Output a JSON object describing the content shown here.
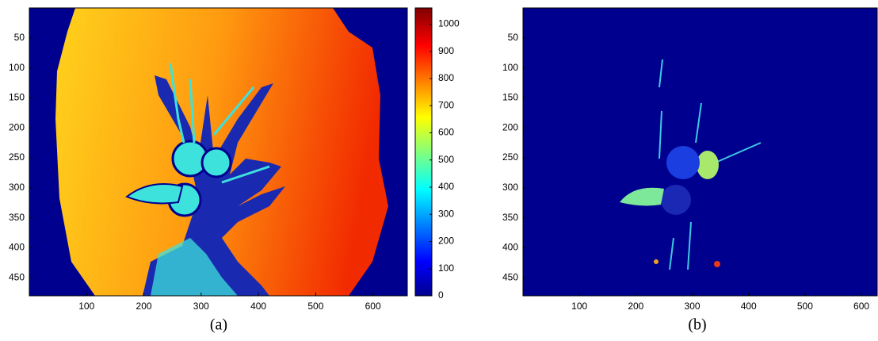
{
  "chart_data": [
    {
      "type": "heatmap",
      "caption": "(a)",
      "xlim": [
        0,
        660
      ],
      "xticks": [
        100,
        200,
        300,
        400,
        500,
        600
      ],
      "ylim": [
        0,
        480
      ],
      "yreverse": true,
      "yticks": [
        50,
        100,
        150,
        200,
        250,
        300,
        350,
        400,
        450
      ],
      "colorbar": {
        "lim": [
          0,
          1060
        ],
        "ticks": [
          0,
          100,
          200,
          300,
          400,
          500,
          600,
          700,
          800,
          900,
          1000
        ]
      }
    },
    {
      "type": "heatmap",
      "caption": "(b)",
      "xlim": [
        0,
        628
      ],
      "xticks": [
        100,
        200,
        300,
        400,
        500,
        600
      ],
      "ylim": [
        0,
        480
      ],
      "yreverse": true,
      "yticks": [
        50,
        100,
        150,
        200,
        250,
        300,
        350,
        400,
        450
      ]
    }
  ]
}
